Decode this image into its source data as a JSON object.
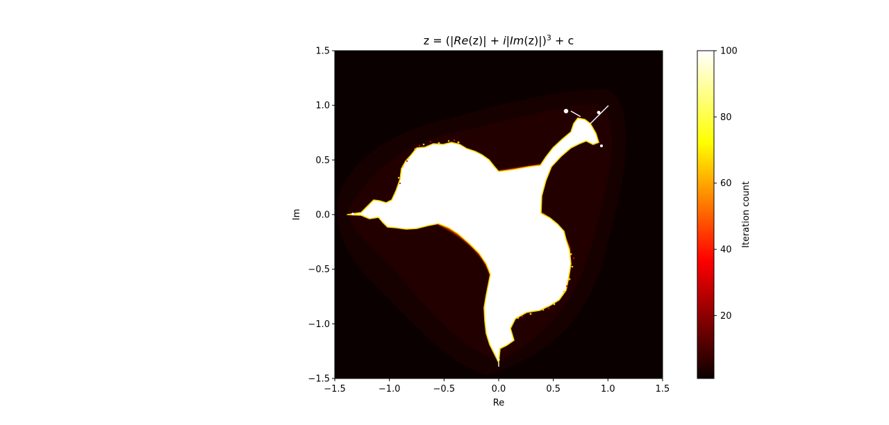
{
  "chart_data": {
    "type": "heatmap",
    "title": "z = (|Re(z)| + i|Im(z)|)³ + c",
    "title_parts": {
      "prefix": "z = (|",
      "re": "Re",
      "z1": "(z)| + ",
      "i": "i",
      "bar": "|",
      "im": "Im",
      "z2": "(z)|)",
      "exp": "3",
      "suffix": " + c"
    },
    "xlabel": "Re",
    "ylabel": "Im",
    "xlim": [
      -1.5,
      1.5
    ],
    "ylim": [
      -1.5,
      1.5
    ],
    "xticks": [
      -1.5,
      -1.0,
      -0.5,
      0.0,
      0.5,
      1.0,
      1.5
    ],
    "yticks": [
      -1.5,
      -1.0,
      -0.5,
      0.0,
      0.5,
      1.0,
      1.5
    ],
    "xtick_labels": [
      "−1.5",
      "−1.0",
      "−0.5",
      "0.0",
      "0.5",
      "1.0",
      "1.5"
    ],
    "ytick_labels": [
      "−1.5",
      "−1.0",
      "−0.5",
      "0.0",
      "0.5",
      "1.0",
      "1.5"
    ],
    "colormap": "hot",
    "grid": false,
    "colorbar": {
      "label": "Iteration count",
      "range": [
        1,
        100
      ],
      "ticks": [
        20,
        40,
        60,
        80,
        100
      ],
      "tick_labels": [
        "20",
        "40",
        "60",
        "80",
        "100"
      ]
    }
  }
}
